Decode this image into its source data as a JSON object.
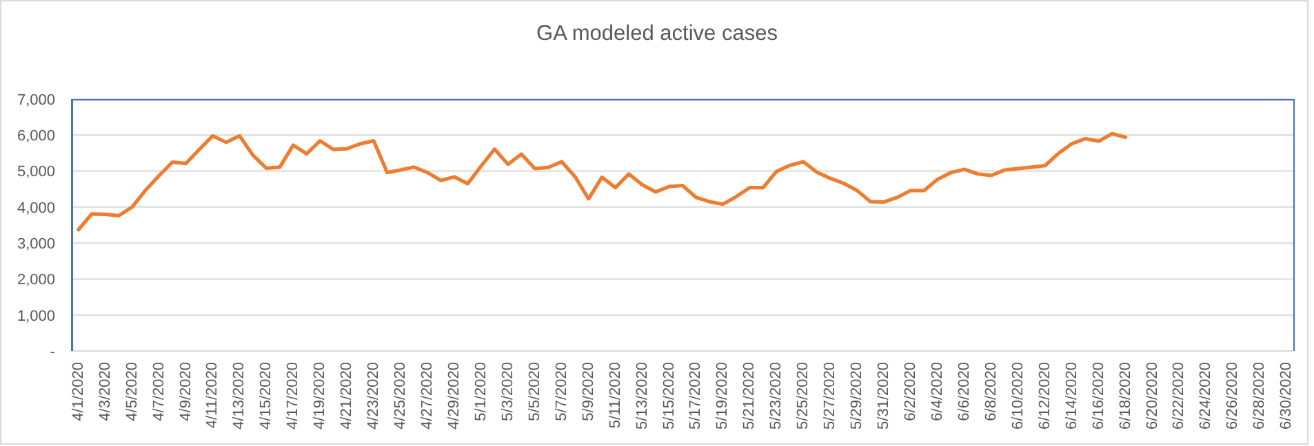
{
  "chart_data": {
    "type": "line",
    "title": "GA modeled active cases",
    "categories": [
      "4/1/2020",
      null,
      "4/3/2020",
      null,
      "4/5/2020",
      null,
      "4/7/2020",
      null,
      "4/9/2020",
      null,
      "4/11/2020",
      null,
      "4/13/2020",
      null,
      "4/15/2020",
      null,
      "4/17/2020",
      null,
      "4/19/2020",
      null,
      "4/21/2020",
      null,
      "4/23/2020",
      null,
      "4/25/2020",
      null,
      "4/27/2020",
      null,
      "4/29/2020",
      null,
      "5/1/2020",
      null,
      "5/3/2020",
      null,
      "5/5/2020",
      null,
      "5/7/2020",
      null,
      "5/9/2020",
      null,
      "5/11/2020",
      null,
      "5/13/2020",
      null,
      "5/15/2020",
      null,
      "5/17/2020",
      null,
      "5/19/2020",
      null,
      "5/21/2020",
      null,
      "5/23/2020",
      null,
      "5/25/2020",
      null,
      "5/27/2020",
      null,
      "5/29/2020",
      null,
      "5/31/2020",
      null,
      "6/2/2020",
      null,
      "6/4/2020",
      null,
      "6/6/2020",
      null,
      "6/8/2020",
      null,
      "6/10/2020",
      null,
      "6/12/2020",
      null,
      "6/14/2020",
      null,
      "6/16/2020",
      null,
      "6/18/2020",
      null,
      "6/20/2020",
      null,
      "6/22/2020",
      null,
      "6/24/2020",
      null,
      "6/26/2020",
      null,
      "6/28/2020",
      null,
      "6/30/2020"
    ],
    "values": [
      3370,
      3810,
      3800,
      3760,
      4000,
      4470,
      4870,
      5250,
      5210,
      5600,
      5980,
      5800,
      5980,
      5440,
      5080,
      5110,
      5720,
      5480,
      5840,
      5600,
      5620,
      5760,
      5840,
      4960,
      5030,
      5110,
      4960,
      4740,
      4840,
      4650,
      5140,
      5610,
      5190,
      5470,
      5070,
      5100,
      5260,
      4840,
      4230,
      4830,
      4540,
      4920,
      4620,
      4420,
      4570,
      4600,
      4270,
      4150,
      4080,
      4290,
      4540,
      4540,
      4990,
      5160,
      5260,
      4970,
      4800,
      4660,
      4460,
      4150,
      4140,
      4270,
      4460,
      4460,
      4770,
      4960,
      5050,
      4920,
      4880,
      5030,
      5070,
      5110,
      5150,
      5490,
      5760,
      5900,
      5830,
      6040,
      5940,
      null,
      null,
      null,
      null,
      null,
      null,
      null,
      null,
      null,
      null,
      null,
      null
    ],
    "color": "#ed7d31",
    "ylim": [
      0,
      7000
    ],
    "yticks": [
      {
        "value": 0,
        "label": "-"
      },
      {
        "value": 1000,
        "label": "1,000"
      },
      {
        "value": 2000,
        "label": "2,000"
      },
      {
        "value": 3000,
        "label": "3,000"
      },
      {
        "value": 4000,
        "label": "4,000"
      },
      {
        "value": 5000,
        "label": "5,000"
      },
      {
        "value": 6000,
        "label": "6,000"
      },
      {
        "value": 7000,
        "label": "7,000"
      }
    ],
    "grid": "y",
    "marker": "none",
    "line_style": "solid"
  }
}
